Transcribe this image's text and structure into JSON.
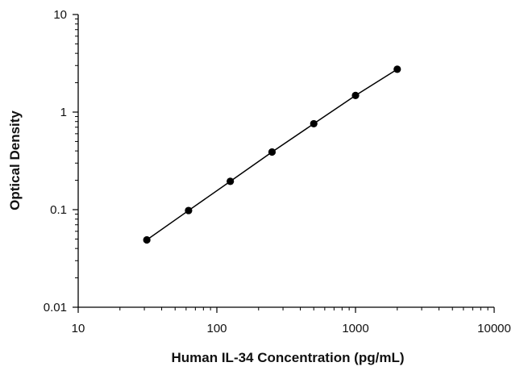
{
  "chart_data": {
    "type": "scatter",
    "title": "",
    "xlabel": "Human IL-34 Concentration (pg/mL)",
    "ylabel": "Optical Density",
    "x_scale": "log",
    "y_scale": "log",
    "xlim": [
      10,
      10000
    ],
    "ylim": [
      0.01,
      10
    ],
    "x_ticks": [
      "10",
      "100",
      "1000",
      "10000"
    ],
    "y_ticks": [
      "0.01",
      "0.1",
      "1",
      "10"
    ],
    "grid": false,
    "legend": "none",
    "series": [
      {
        "x": [
          31.25,
          62.5,
          125,
          250,
          500,
          1000,
          2000
        ],
        "y": [
          0.049,
          0.098,
          0.195,
          0.39,
          0.76,
          1.48,
          2.75
        ]
      }
    ],
    "fit_line": true,
    "colors": {
      "line": "#000000",
      "marker": "#000000",
      "axis": "#000000"
    }
  }
}
